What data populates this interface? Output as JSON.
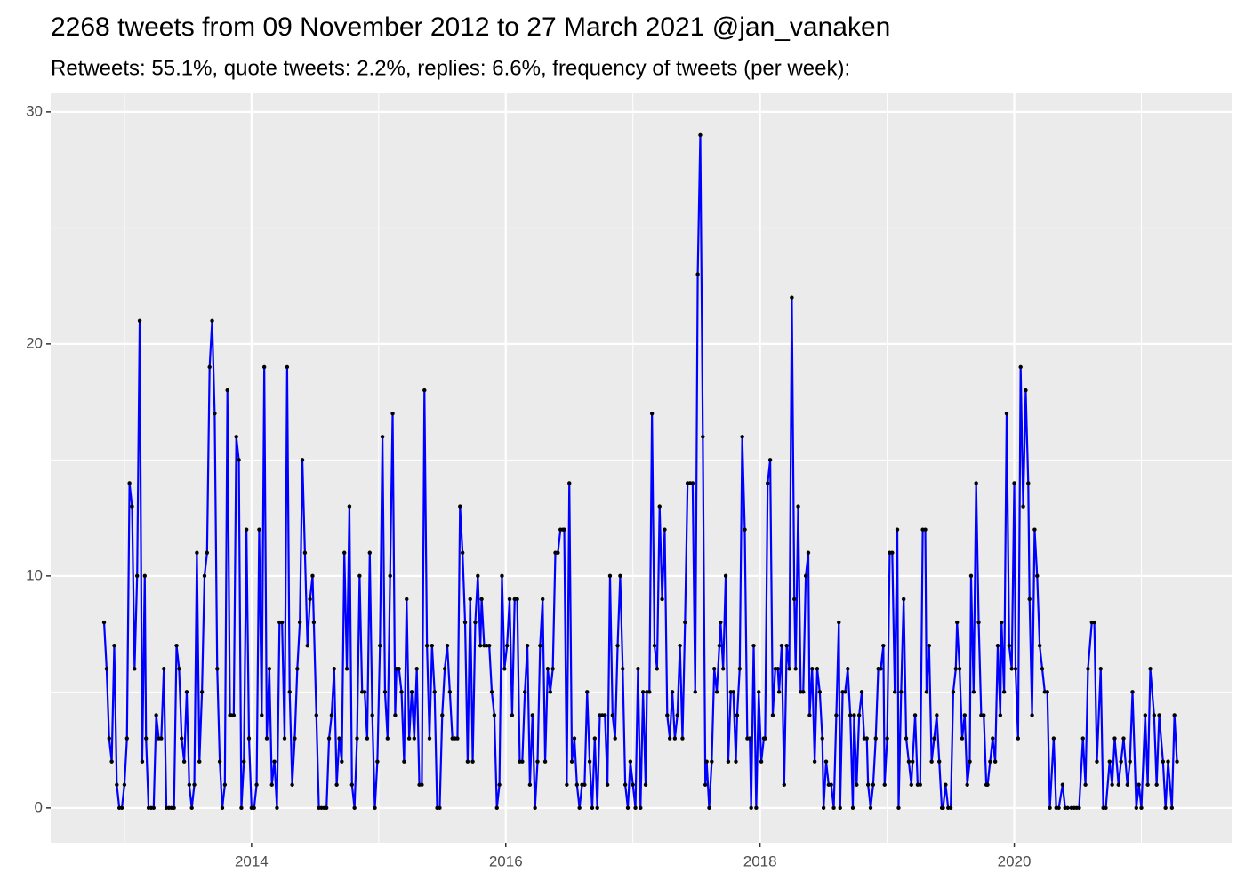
{
  "chart_data": {
    "type": "line",
    "title": "2268 tweets from 09 November 2012 to 27 March 2021 @jan_vanaken",
    "subtitle": "Retweets: 55.1%, quote tweets: 2.2%, replies: 6.6%, frequency of tweets (per week):",
    "color": "#0000ff",
    "marker_color": "#000000",
    "background": "#ebebeb",
    "grid": true,
    "xlim": [
      2012.42,
      2021.71
    ],
    "xticks": [
      2014,
      2016,
      2018,
      2020
    ],
    "minor_xticks": [
      2013,
      2015,
      2017,
      2019,
      2021
    ],
    "ylim": [
      -1.5,
      30.8
    ],
    "yticks": [
      0,
      10,
      20,
      30
    ],
    "minor_yticks": [
      5,
      15,
      25
    ],
    "x": [
      2012.84,
      2012.86,
      2012.88,
      2012.9,
      2012.92,
      2012.94,
      2012.96,
      2012.98,
      2013,
      2013.02,
      2013.04,
      2013.06,
      2013.08,
      2013.1,
      2013.12,
      2013.14,
      2013.16,
      2013.17,
      2013.19,
      2013.21,
      2013.23,
      2013.25,
      2013.27,
      2013.29,
      2013.31,
      2013.33,
      2013.35,
      2013.37,
      2013.39,
      2013.41,
      2013.43,
      2013.45,
      2013.47,
      2013.49,
      2013.51,
      2013.53,
      2013.55,
      2013.57,
      2013.59,
      2013.61,
      2013.63,
      2013.65,
      2013.67,
      2013.69,
      2013.71,
      2013.73,
      2013.75,
      2013.77,
      2013.79,
      2013.81,
      2013.83,
      2013.84,
      2013.86,
      2013.88,
      2013.9,
      2013.92,
      2013.94,
      2013.96,
      2013.98,
      2014,
      2014.02,
      2014.04,
      2014.06,
      2014.08,
      2014.1,
      2014.12,
      2014.14,
      2014.16,
      2014.18,
      2014.2,
      2014.22,
      2014.24,
      2014.26,
      2014.28,
      2014.3,
      2014.32,
      2014.34,
      2014.36,
      2014.38,
      2014.4,
      2014.42,
      2014.44,
      2014.46,
      2014.48,
      2014.49,
      2014.51,
      2014.53,
      2014.55,
      2014.57,
      2014.59,
      2014.61,
      2014.63,
      2014.65,
      2014.67,
      2014.69,
      2014.71,
      2014.73,
      2014.75,
      2014.77,
      2014.79,
      2014.81,
      2014.83,
      2014.85,
      2014.87,
      2014.89,
      2014.91,
      2014.93,
      2014.95,
      2014.97,
      2014.99,
      2015.01,
      2015.03,
      2015.05,
      2015.07,
      2015.09,
      2015.11,
      2015.13,
      2015.14,
      2015.16,
      2015.18,
      2015.2,
      2015.22,
      2015.24,
      2015.26,
      2015.28,
      2015.3,
      2015.32,
      2015.34,
      2015.36,
      2015.38,
      2015.4,
      2015.42,
      2015.44,
      2015.46,
      2015.48,
      2015.5,
      2015.52,
      2015.54,
      2015.56,
      2015.58,
      2015.6,
      2015.62,
      2015.64,
      2015.66,
      2015.68,
      2015.7,
      2015.72,
      2015.74,
      2015.76,
      2015.78,
      2015.8,
      2015.81,
      2015.83,
      2015.85,
      2015.87,
      2015.89,
      2015.91,
      2015.93,
      2015.95,
      2015.97,
      2015.99,
      2016.01,
      2016.03,
      2016.05,
      2016.07,
      2016.09,
      2016.11,
      2016.13,
      2016.15,
      2016.17,
      2016.19,
      2016.21,
      2016.23,
      2016.25,
      2016.27,
      2016.29,
      2016.31,
      2016.33,
      2016.35,
      2016.37,
      2016.39,
      2016.41,
      2016.43,
      2016.45,
      2016.46,
      2016.48,
      2016.5,
      2016.52,
      2016.54,
      2016.56,
      2016.58,
      2016.6,
      2016.62,
      2016.64,
      2016.66,
      2016.68,
      2016.7,
      2016.72,
      2016.74,
      2016.76,
      2016.78,
      2016.8,
      2016.82,
      2016.84,
      2016.86,
      2016.88,
      2016.9,
      2016.92,
      2016.94,
      2016.96,
      2016.98,
      2017,
      2017.02,
      2017.04,
      2017.06,
      2017.08,
      2017.1,
      2017.11,
      2017.13,
      2017.15,
      2017.17,
      2017.19,
      2017.21,
      2017.23,
      2017.25,
      2017.27,
      2017.29,
      2017.31,
      2017.33,
      2017.35,
      2017.37,
      2017.39,
      2017.41,
      2017.43,
      2017.45,
      2017.47,
      2017.49,
      2017.51,
      2017.53,
      2017.55,
      2017.57,
      2017.58,
      2017.6,
      2017.62,
      2017.64,
      2017.66,
      2017.68,
      2017.69,
      2017.71,
      2017.73,
      2017.75,
      2017.77,
      2017.79,
      2017.81,
      2017.82,
      2017.84,
      2017.86,
      2017.88,
      2017.9,
      2017.92,
      2017.93,
      2017.95,
      2017.97,
      2017.99,
      2018.01,
      2018.03,
      2018.04,
      2018.06,
      2018.08,
      2018.1,
      2018.12,
      2018.14,
      2018.15,
      2018.17,
      2018.19,
      2018.21,
      2018.23,
      2018.25,
      2018.27,
      2018.28,
      2018.3,
      2018.32,
      2018.34,
      2018.36,
      2018.38,
      2018.39,
      2018.41,
      2018.43,
      2018.45,
      2018.47,
      2018.49,
      2018.5,
      2018.52,
      2018.54,
      2018.56,
      2018.58,
      2018.6,
      2018.62,
      2018.63,
      2018.65,
      2018.67,
      2018.69,
      2018.71,
      2018.73,
      2018.74,
      2018.76,
      2018.78,
      2018.8,
      2018.82,
      2018.84,
      2018.85,
      2018.87,
      2018.89,
      2018.91,
      2018.93,
      2018.95,
      2018.97,
      2018.98,
      2019,
      2019.02,
      2019.04,
      2019.06,
      2019.08,
      2019.09,
      2019.11,
      2019.13,
      2019.15,
      2019.17,
      2019.19,
      2019.2,
      2019.22,
      2019.24,
      2019.26,
      2019.28,
      2019.3,
      2019.31,
      2019.33,
      2019.35,
      2019.37,
      2019.39,
      2019.41,
      2019.43,
      2019.44,
      2019.46,
      2019.48,
      2019.5,
      2019.52,
      2019.54,
      2019.55,
      2019.57,
      2019.59,
      2019.61,
      2019.63,
      2019.65,
      2019.66,
      2019.68,
      2019.7,
      2019.72,
      2019.74,
      2019.76,
      2019.78,
      2019.79,
      2019.81,
      2019.83,
      2019.85,
      2019.87,
      2019.89,
      2019.9,
      2019.92,
      2019.94,
      2019.96,
      2019.98,
      2020,
      2020.01,
      2020.03,
      2020.05,
      2020.07,
      2020.09,
      2020.11,
      2020.12,
      2020.14,
      2020.16,
      2020.18,
      2020.2,
      2020.22,
      2020.24,
      2020.26,
      2020.28,
      2020.31,
      2020.33,
      2020.35,
      2020.38,
      2020.4,
      2020.42,
      2020.45,
      2020.47,
      2020.49,
      2020.51,
      2020.54,
      2020.56,
      2020.58,
      2020.61,
      2020.63,
      2020.65,
      2020.68,
      2020.7,
      2020.72,
      2020.75,
      2020.77,
      2020.79,
      2020.82,
      2020.84,
      2020.86,
      2020.89,
      2020.91,
      2020.93,
      2020.96,
      2020.98,
      2021,
      2021.03,
      2021.05,
      2021.07,
      2021.1,
      2021.12,
      2021.14,
      2021.17,
      2021.19,
      2021.21,
      2021.24,
      2021.26,
      2021.28
    ],
    "values": [
      8,
      6,
      3,
      2,
      7,
      1,
      0,
      0,
      1,
      3,
      14,
      13,
      6,
      10,
      21,
      2,
      10,
      3,
      0,
      0,
      0,
      4,
      3,
      3,
      6,
      0,
      0,
      0,
      0,
      7,
      6,
      3,
      2,
      5,
      1,
      0,
      1,
      11,
      2,
      5,
      10,
      11,
      19,
      21,
      17,
      6,
      2,
      0,
      1,
      18,
      4,
      4,
      4,
      16,
      15,
      0,
      2,
      12,
      3,
      0,
      0,
      1,
      12,
      4,
      19,
      3,
      6,
      1,
      2,
      0,
      8,
      8,
      3,
      19,
      5,
      1,
      3,
      6,
      8,
      15,
      11,
      7,
      9,
      10,
      8,
      4,
      0,
      0,
      0,
      0,
      3,
      4,
      6,
      1,
      3,
      2,
      11,
      6,
      13,
      1,
      0,
      3,
      10,
      5,
      5,
      3,
      11,
      4,
      0,
      2,
      7,
      16,
      5,
      3,
      10,
      17,
      4,
      6,
      6,
      5,
      2,
      9,
      3,
      5,
      3,
      6,
      1,
      1,
      18,
      7,
      3,
      7,
      5,
      0,
      0,
      4,
      6,
      7,
      5,
      3,
      3,
      3,
      13,
      11,
      8,
      2,
      9,
      2,
      8,
      10,
      7,
      9,
      7,
      7,
      7,
      5,
      4,
      0,
      1,
      10,
      6,
      7,
      9,
      4,
      9,
      9,
      2,
      2,
      5,
      7,
      1,
      4,
      0,
      2,
      7,
      9,
      2,
      6,
      5,
      6,
      11,
      11,
      12,
      12,
      12,
      1,
      14,
      2,
      3,
      1,
      0,
      1,
      1,
      5,
      2,
      0,
      3,
      0,
      4,
      4,
      4,
      1,
      10,
      4,
      3,
      7,
      10,
      6,
      1,
      0,
      2,
      1,
      0,
      6,
      0,
      5,
      1,
      5,
      5,
      17,
      7,
      6,
      13,
      9,
      12,
      4,
      3,
      5,
      3,
      4,
      7,
      3,
      8,
      14,
      14,
      14,
      5,
      23,
      29,
      16,
      1,
      2,
      0,
      2,
      6,
      5,
      7,
      8,
      6,
      10,
      2,
      5,
      5,
      2,
      4,
      6,
      16,
      12,
      3,
      3,
      0,
      7,
      0,
      5,
      2,
      3,
      3,
      14,
      15,
      4,
      6,
      6,
      5,
      7,
      1,
      7,
      6,
      22,
      9,
      6,
      13,
      5,
      5,
      10,
      11,
      4,
      6,
      2,
      6,
      5,
      3,
      0,
      2,
      1,
      1,
      0,
      4,
      8,
      0,
      5,
      5,
      6,
      4,
      0,
      4,
      1,
      4,
      5,
      3,
      3,
      1,
      0,
      1,
      3,
      6,
      6,
      7,
      1,
      3,
      11,
      11,
      5,
      12,
      0,
      5,
      9,
      3,
      2,
      1,
      2,
      4,
      1,
      1,
      12,
      12,
      5,
      7,
      2,
      3,
      4,
      2,
      0,
      0,
      1,
      0,
      0,
      5,
      6,
      8,
      6,
      3,
      4,
      1,
      2,
      10,
      5,
      14,
      8,
      4,
      4,
      1,
      1,
      2,
      3,
      2,
      7,
      4,
      8,
      5,
      17,
      7,
      6,
      14,
      6,
      3,
      19,
      13,
      18,
      14,
      9,
      4,
      12,
      10,
      7,
      6,
      5,
      5,
      0,
      3,
      0,
      0,
      1,
      0,
      0,
      0,
      0,
      0,
      0,
      3,
      1,
      6,
      8,
      8,
      2,
      6,
      0,
      0,
      2,
      1,
      3,
      1,
      2,
      3,
      1,
      2,
      5,
      0,
      1,
      0,
      4,
      1,
      6,
      4,
      1,
      4,
      2,
      0,
      2,
      0,
      4,
      2
    ]
  }
}
